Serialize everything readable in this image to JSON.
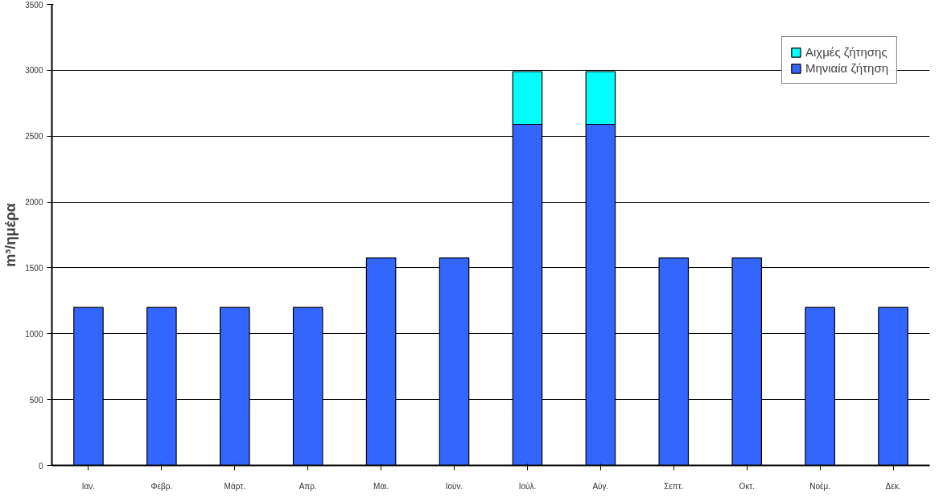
{
  "chart_data": {
    "type": "bar",
    "stacked": true,
    "ylabel": "m³/ημέρα",
    "categories": [
      "Ιαν.",
      "Φεβρ.",
      "Μάρτ.",
      "Απρ.",
      "Μαι.",
      "Ιούν.",
      "Ιούλ.",
      "Αύγ.",
      "Σεπτ.",
      "Οκτ.",
      "Νοέμ.",
      "Δεκ."
    ],
    "series": [
      {
        "name": "Μηνιαία ζήτηση",
        "color": "#3366ff",
        "values": [
          1200,
          1200,
          1200,
          1200,
          1575,
          1575,
          2590,
          2590,
          1575,
          1575,
          1200,
          1200
        ]
      },
      {
        "name": "Αιχμές ζήτησης",
        "color": "#00ffff",
        "values": [
          null,
          null,
          null,
          null,
          null,
          null,
          400,
          400,
          null,
          null,
          null,
          null
        ]
      }
    ],
    "ylim": [
      0,
      3500
    ],
    "yticks": [
      0,
      500,
      1000,
      1500,
      2000,
      2500,
      3000,
      3500
    ],
    "grid": "y",
    "legend": "top right"
  }
}
